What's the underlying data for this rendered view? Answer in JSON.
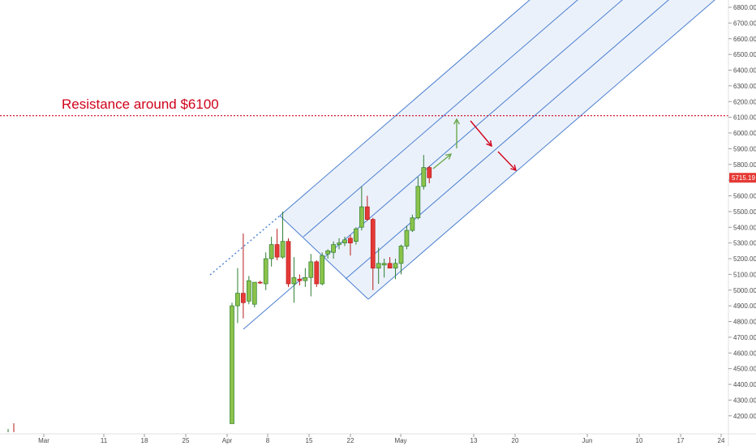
{
  "chart_data": {
    "type": "candlestick",
    "x_ticks": [
      "Mar",
      "11",
      "18",
      "25",
      "Apr",
      "8",
      "15",
      "22",
      "May",
      "13",
      "20",
      "Jun",
      "10",
      "17",
      "24"
    ],
    "y_ticks": [
      "6800.00",
      "6700.00",
      "6600.00",
      "6500.00",
      "6400.00",
      "6300.00",
      "6200.00",
      "6100.00",
      "6000.00",
      "5900.00",
      "5800.00",
      "5700.00",
      "5600.00",
      "5500.00",
      "5400.00",
      "5300.00",
      "5200.00",
      "5100.00",
      "5000.00",
      "4900.00",
      "4800.00",
      "4700.00",
      "4600.00",
      "4500.00",
      "4400.00",
      "4300.00",
      "4200.00"
    ],
    "y_range": [
      4150,
      6850
    ],
    "resistance": {
      "price": 6110,
      "label": "Resistance around $6100",
      "color": "#d0021b"
    },
    "last_price": {
      "value": 5715,
      "label": "5715.19",
      "color": "#e53935"
    },
    "colors": {
      "up": "#8bc34a",
      "up_border": "#2e7d32",
      "down": "#e53935",
      "down_border": "#b71c1c",
      "channel_line": "#4a7fd0",
      "channel_fill": "#e8effa",
      "green_arrow": "#6aa84f",
      "red_arrow": "#d0021b"
    },
    "candles": [
      {
        "o": 4150,
        "h": 4920,
        "l": 4150,
        "c": 4900
      },
      {
        "o": 4900,
        "h": 5140,
        "l": 4790,
        "c": 4980
      },
      {
        "o": 4980,
        "h": 5360,
        "l": 4820,
        "c": 4920
      },
      {
        "o": 4930,
        "h": 5090,
        "l": 4910,
        "c": 5060
      },
      {
        "o": 4910,
        "h": 5050,
        "l": 4890,
        "c": 5050
      },
      {
        "o": 5050,
        "h": 5060,
        "l": 5040,
        "c": 5045
      },
      {
        "o": 5040,
        "h": 5240,
        "l": 5000,
        "c": 5200
      },
      {
        "o": 5200,
        "h": 5340,
        "l": 5150,
        "c": 5290
      },
      {
        "o": 5290,
        "h": 5390,
        "l": 5190,
        "c": 5210
      },
      {
        "o": 5210,
        "h": 5500,
        "l": 5200,
        "c": 5310
      },
      {
        "o": 5310,
        "h": 5330,
        "l": 5020,
        "c": 5040
      },
      {
        "o": 5040,
        "h": 5210,
        "l": 4920,
        "c": 5080
      },
      {
        "o": 5070,
        "h": 5100,
        "l": 5030,
        "c": 5060
      },
      {
        "o": 5060,
        "h": 5140,
        "l": 5020,
        "c": 5080
      },
      {
        "o": 5080,
        "h": 5230,
        "l": 4960,
        "c": 5180
      },
      {
        "o": 5180,
        "h": 5190,
        "l": 5020,
        "c": 5040
      },
      {
        "o": 5040,
        "h": 5240,
        "l": 5030,
        "c": 5220
      },
      {
        "o": 5230,
        "h": 5260,
        "l": 5200,
        "c": 5250
      },
      {
        "o": 5240,
        "h": 5310,
        "l": 5200,
        "c": 5290
      },
      {
        "o": 5290,
        "h": 5330,
        "l": 5260,
        "c": 5300
      },
      {
        "o": 5300,
        "h": 5340,
        "l": 5280,
        "c": 5320
      },
      {
        "o": 5330,
        "h": 5350,
        "l": 5220,
        "c": 5300
      },
      {
        "o": 5310,
        "h": 5400,
        "l": 5290,
        "c": 5390
      },
      {
        "o": 5400,
        "h": 5660,
        "l": 5380,
        "c": 5530
      },
      {
        "o": 5530,
        "h": 5600,
        "l": 5440,
        "c": 5450
      },
      {
        "o": 5450,
        "h": 5460,
        "l": 5000,
        "c": 5140
      },
      {
        "o": 5140,
        "h": 5270,
        "l": 5040,
        "c": 5170
      },
      {
        "o": 5160,
        "h": 5200,
        "l": 5080,
        "c": 5170
      },
      {
        "o": 5170,
        "h": 5210,
        "l": 5150,
        "c": 5140
      },
      {
        "o": 5140,
        "h": 5200,
        "l": 5070,
        "c": 5170
      },
      {
        "o": 5170,
        "h": 5290,
        "l": 5100,
        "c": 5280
      },
      {
        "o": 5280,
        "h": 5410,
        "l": 5260,
        "c": 5380
      },
      {
        "o": 5380,
        "h": 5480,
        "l": 5370,
        "c": 5460
      },
      {
        "o": 5460,
        "h": 5720,
        "l": 5450,
        "c": 5660
      },
      {
        "o": 5660,
        "h": 5860,
        "l": 5640,
        "c": 5780
      },
      {
        "o": 5780,
        "h": 5790,
        "l": 5680,
        "c": 5715
      }
    ]
  }
}
